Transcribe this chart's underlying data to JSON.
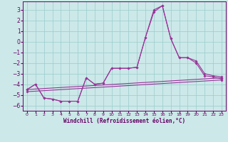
{
  "xlabel": "Windchill (Refroidissement éolien,°C)",
  "bg_color": "#cce8e8",
  "grid_color": "#99cccc",
  "line_color": "#993399",
  "xlim": [
    -0.5,
    23.5
  ],
  "ylim": [
    -6.5,
    3.8
  ],
  "xticks": [
    0,
    1,
    2,
    3,
    4,
    5,
    6,
    7,
    8,
    9,
    10,
    11,
    12,
    13,
    14,
    15,
    16,
    17,
    18,
    19,
    20,
    21,
    22,
    23
  ],
  "yticks": [
    -6,
    -5,
    -4,
    -3,
    -2,
    -1,
    0,
    1,
    2,
    3
  ],
  "line1_x": [
    0,
    1,
    2,
    3,
    4,
    5,
    6,
    7,
    8,
    9,
    10,
    11,
    12,
    13,
    14,
    15,
    16,
    17,
    18,
    19,
    20,
    21,
    22,
    23
  ],
  "line1_y": [
    -4.5,
    -4.0,
    -5.3,
    -5.4,
    -5.6,
    -5.6,
    -5.6,
    -3.4,
    -4.0,
    -3.9,
    -2.5,
    -2.5,
    -2.5,
    -2.4,
    0.4,
    3.0,
    3.4,
    0.3,
    -1.5,
    -1.5,
    -1.8,
    -3.0,
    -3.2,
    -3.3
  ],
  "line2_x": [
    0,
    1,
    2,
    3,
    4,
    5,
    6,
    7,
    8,
    9,
    10,
    11,
    12,
    13,
    14,
    15,
    16,
    17,
    18,
    19,
    20,
    21,
    22,
    23
  ],
  "line2_y": [
    -4.5,
    -4.0,
    -5.3,
    -5.4,
    -5.6,
    -5.6,
    -5.6,
    -3.4,
    -4.0,
    -3.9,
    -2.5,
    -2.5,
    -2.5,
    -2.4,
    0.4,
    2.8,
    3.4,
    0.3,
    -1.5,
    -1.5,
    -2.0,
    -3.2,
    -3.3,
    -3.5
  ],
  "line3_x": [
    0,
    23
  ],
  "line3_y": [
    -4.5,
    -3.4
  ],
  "line4_x": [
    0,
    23
  ],
  "line4_y": [
    -4.7,
    -3.6
  ]
}
